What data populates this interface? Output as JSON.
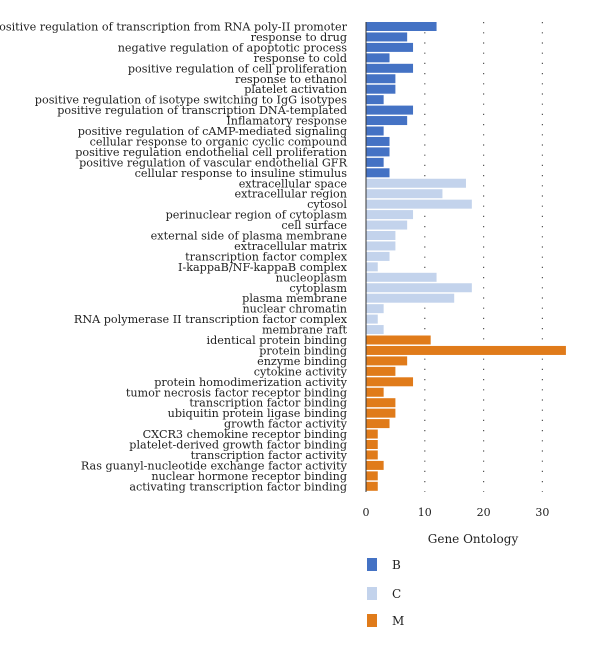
{
  "chart_data": {
    "type": "bar",
    "orientation": "horizontal",
    "xlabel": "Gene Ontology",
    "ylabel": "",
    "xlim": [
      0,
      35
    ],
    "xticks": [
      0,
      10,
      20,
      30
    ],
    "grid": "vertical dotted at ticks 10, 20, 30",
    "legend_position": "bottom",
    "series": [
      {
        "name": "B",
        "color": "#4472c4",
        "categories": [
          "positive regulation of transcription from RNA poly-II promoter",
          "response to drug",
          "negative regulation of apoptotic process",
          "response to cold",
          "positive regulation of cell proliferation",
          "response to ethanol",
          "platelet activation",
          "positive regulation of isotype switching to IgG isotypes",
          "positive regulation of transcription DNA-templated",
          "Inflamatory response",
          "positive regulation of cAMP-mediated signaling",
          "cellular response to organic cyclic compound",
          "positive regulation endothelial cell proliferation",
          "positive regulation of vascular endothelial GFR",
          "cellular response to insuline stimulus"
        ],
        "values": [
          12,
          7,
          8,
          4,
          8,
          5,
          5,
          3,
          8,
          7,
          3,
          4,
          4,
          3,
          4
        ]
      },
      {
        "name": "C",
        "color": "#c3d3ec",
        "categories": [
          "extracellular space",
          "extracellular region",
          "cytosol",
          "perinuclear region of cytoplasm",
          "cell surface",
          "external side of plasma membrane",
          "extracellular matrix",
          "transcription factor complex",
          "I-kappaB/NF-kappaB complex",
          "nucleoplasm",
          "cytoplasm",
          "plasma membrane",
          "nuclear chromatin",
          "RNA polymerase II transcription factor complex",
          "membrane raft"
        ],
        "values": [
          17,
          13,
          18,
          8,
          7,
          5,
          5,
          4,
          2,
          12,
          18,
          15,
          3,
          2,
          3
        ]
      },
      {
        "name": "M",
        "color": "#e07b1a",
        "categories": [
          "identical protein binding",
          "protein binding",
          "enzyme binding",
          "cytokine activity",
          "protein homodimerization activity",
          "tumor necrosis factor receptor binding",
          "transcription factor binding",
          "ubiquitin protein ligase binding",
          "growth factor activity",
          "CXCR3 chemokine receptor binding",
          "platelet-derived growth factor binding",
          "transcription factor activity",
          "Ras guanyl-nucleotide exchange factor activity",
          "nuclear hormone receptor binding",
          "activating transcription factor binding"
        ],
        "values": [
          11,
          34,
          7,
          5,
          8,
          3,
          5,
          5,
          4,
          2,
          2,
          2,
          3,
          2,
          2
        ]
      }
    ]
  }
}
